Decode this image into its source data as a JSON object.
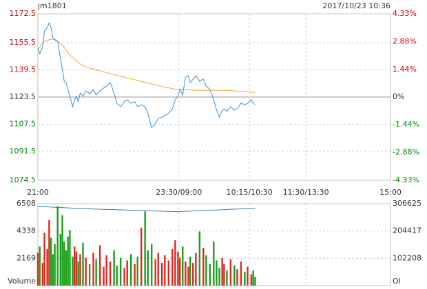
{
  "chart_data": [
    {
      "type": "line",
      "title": "jm1801",
      "subtitle": "2017/10/23 10:36",
      "xlim": [
        0,
        375
      ],
      "xticks": [
        {
          "value": 0,
          "label": "21:00"
        },
        {
          "value": 150,
          "label": "23:30/09:00"
        },
        {
          "value": 225,
          "label": "10:15/10:30"
        },
        {
          "value": 285,
          "label": "11:30/13:30"
        },
        {
          "value": 375,
          "label": "15:00"
        }
      ],
      "ylim": [
        1074.5,
        1172.5
      ],
      "yticks": [
        1172.5,
        1155.5,
        1139.5,
        1123.5,
        1107.5,
        1091.5,
        1074.5
      ],
      "y2lim": [
        -4.33,
        4.33
      ],
      "y2ticks": [
        {
          "value": 4.33,
          "label": "4.33%"
        },
        {
          "value": 2.88,
          "label": "2.88%"
        },
        {
          "value": 1.44,
          "label": "1.44%"
        },
        {
          "value": 0,
          "label": "0%"
        },
        {
          "value": -1.44,
          "label": "-1.44%"
        },
        {
          "value": -2.88,
          "label": "-2.88%"
        },
        {
          "value": -4.33,
          "label": "-4.33%"
        }
      ],
      "up_color": "#cc0000",
      "down_color": "#008800",
      "flat_color": "#333333",
      "grid": true,
      "x": [
        0,
        2,
        5,
        7,
        10,
        12,
        14,
        16,
        18,
        21,
        24,
        26,
        28,
        30,
        32,
        34,
        37,
        39,
        41,
        43,
        45,
        48,
        51,
        55,
        59,
        62,
        66,
        70,
        73,
        77,
        81,
        84,
        88,
        92,
        95,
        99,
        103,
        106,
        110,
        114,
        117,
        121,
        125,
        128,
        132,
        135,
        139,
        143,
        146,
        149,
        151,
        154,
        157,
        160,
        162,
        165,
        168,
        172,
        176,
        179,
        183,
        187,
        190,
        193,
        196,
        198,
        201,
        205,
        209,
        212,
        216,
        220,
        223,
        227,
        229,
        231
      ],
      "series": [
        {
          "color": "#3a8fd6",
          "values": [
            1152.3,
            1149.0,
            1153.1,
            1162.4,
            1164.4,
            1167.2,
            1164.4,
            1158.3,
            1157.1,
            1156.3,
            1146.2,
            1140.1,
            1132.8,
            1132.0,
            1127.9,
            1123.9,
            1117.8,
            1121.9,
            1123.9,
            1120.7,
            1125.9,
            1123.9,
            1127.1,
            1125.5,
            1127.9,
            1124.7,
            1127.1,
            1128.8,
            1130.0,
            1132.0,
            1125.9,
            1119.8,
            1117.8,
            1120.7,
            1121.9,
            1119.8,
            1120.7,
            1117.8,
            1119.0,
            1117.8,
            1113.8,
            1105.7,
            1107.7,
            1110.9,
            1111.7,
            1112.6,
            1113.8,
            1116.6,
            1121.9,
            1123.9,
            1127.9,
            1124.7,
            1135.2,
            1136.0,
            1132.0,
            1134.0,
            1136.0,
            1132.8,
            1134.0,
            1130.0,
            1127.9,
            1121.9,
            1115.8,
            1111.7,
            1115.8,
            1116.6,
            1115.0,
            1117.8,
            1115.8,
            1116.6,
            1119.8,
            1119.0,
            1119.8,
            1121.9,
            1119.8,
            1119.0
          ]
        },
        {
          "color": "#f0a830",
          "values": [
            1151.5,
            1153,
            1155,
            1156.3,
            1156.8,
            1157.2,
            1157.4,
            1157.5,
            1157.5,
            1156.5,
            1155,
            1154.3,
            1152.7,
            1151.1,
            1149.6,
            1148.2,
            1147,
            1145.8,
            1144.7,
            1143.9,
            1143,
            1142.1,
            1141.3,
            1140.6,
            1140,
            1139.3,
            1138.8,
            1138.3,
            1137.8,
            1137.3,
            1136.8,
            1136.2,
            1135.7,
            1135.2,
            1134.7,
            1134.2,
            1133.7,
            1133.2,
            1132.7,
            1132.2,
            1131.7,
            1131.2,
            1130.7,
            1130.2,
            1129.7,
            1129.2,
            1128.9,
            1128.5,
            1128.1,
            1127.9,
            1127.9,
            1127.8,
            1127.8,
            1127.7,
            1127.7,
            1127.5,
            1127.5,
            1127.5,
            1127.5,
            1127.5,
            1127.5,
            1127.5,
            1127.5,
            1127.5,
            1127.5,
            1127.5,
            1127.4,
            1127.3,
            1127.1,
            1126.9,
            1126.8,
            1126.6,
            1126.5,
            1126.4,
            1126.3,
            1126.3
          ]
        }
      ]
    },
    {
      "type": "bar",
      "ylabel": "Volume",
      "y2label": "OI",
      "xlim": [
        0,
        375
      ],
      "ylim": [
        0,
        6508
      ],
      "yticks": [
        2169,
        4338,
        6508
      ],
      "y2lim": [
        0,
        306625
      ],
      "y2ticks": [
        102208,
        204417,
        306625
      ],
      "x": [
        0,
        2,
        5,
        7,
        10,
        12,
        14,
        16,
        18,
        21,
        24,
        26,
        28,
        30,
        32,
        34,
        37,
        39,
        41,
        43,
        45,
        48,
        51,
        55,
        59,
        62,
        66,
        70,
        73,
        77,
        81,
        84,
        88,
        92,
        95,
        99,
        103,
        106,
        110,
        114,
        117,
        121,
        125,
        128,
        132,
        135,
        139,
        143,
        146,
        149,
        151,
        154,
        157,
        160,
        162,
        165,
        168,
        172,
        176,
        179,
        183,
        187,
        190,
        193,
        196,
        198,
        201,
        205,
        209,
        212,
        216,
        220,
        223,
        227,
        229,
        231
      ],
      "series": [
        {
          "values": [
            2600,
            3100,
            1800,
            4200,
            2900,
            5200,
            3800,
            2500,
            3300,
            6300,
            4100,
            5600,
            3500,
            2800,
            3900,
            4400,
            2300,
            3100,
            2700,
            1900,
            2500,
            3400,
            2200,
            1700,
            2600,
            2100,
            3200,
            1500,
            2400,
            1900,
            2800,
            1600,
            2200,
            1400,
            2000,
            2500,
            1700,
            2300,
            4600,
            5900,
            2800,
            3300,
            2100,
            2600,
            1800,
            2400,
            2000,
            2900,
            3600,
            2700,
            2200,
            3100,
            1900,
            1500,
            2300,
            1800,
            2600,
            4300,
            3000,
            2400,
            1700,
            3500,
            2000,
            1400,
            2200,
            1700,
            1200,
            2100,
            1600,
            1300,
            1900,
            1100,
            1500,
            900,
            1200,
            700
          ],
          "colors": [
            "#e0261e",
            "#17a017",
            "#e0261e",
            "#e0261e",
            "#e0261e",
            "#e0261e",
            "#17a017",
            "#17a017",
            "#17a017",
            "#17a017",
            "#17a017",
            "#17a017",
            "#17a017",
            "#17a017",
            "#17a017",
            "#17a017",
            "#17a017",
            "#e0261e",
            "#e0261e",
            "#17a017",
            "#e0261e",
            "#17a017",
            "#e0261e",
            "#17a017",
            "#e0261e",
            "#17a017",
            "#e0261e",
            "#e0261e",
            "#e0261e",
            "#e0261e",
            "#17a017",
            "#17a017",
            "#17a017",
            "#e0261e",
            "#e0261e",
            "#17a017",
            "#e0261e",
            "#17a017",
            "#e0261e",
            "#17a017",
            "#17a017",
            "#17a017",
            "#e0261e",
            "#e0261e",
            "#e0261e",
            "#e0261e",
            "#e0261e",
            "#e0261e",
            "#e0261e",
            "#e0261e",
            "#e0261e",
            "#17a017",
            "#e0261e",
            "#e0261e",
            "#17a017",
            "#e0261e",
            "#e0261e",
            "#17a017",
            "#e0261e",
            "#17a017",
            "#17a017",
            "#17a017",
            "#17a017",
            "#17a017",
            "#e0261e",
            "#e0261e",
            "#17a017",
            "#e0261e",
            "#17a017",
            "#e0261e",
            "#e0261e",
            "#17a017",
            "#e0261e",
            "#e0261e",
            "#17a017",
            "#17a017"
          ]
        },
        {
          "axis": "y2",
          "color": "#2f7fc4",
          "values": [
            296500,
            296100,
            295700,
            295300,
            294900,
            294500,
            294100,
            293600,
            293200,
            292800,
            292400,
            292000,
            291600,
            291200,
            290800,
            290400,
            290000,
            289600,
            289200,
            288800,
            288300,
            287900,
            287500,
            287100,
            286700,
            286300,
            285900,
            285500,
            285100,
            284700,
            284300,
            283800,
            283400,
            283000,
            282600,
            282200,
            281800,
            281400,
            281000,
            280600,
            280200,
            279800,
            279300,
            278900,
            278500,
            278100,
            277700,
            277300,
            276900,
            276500,
            277000,
            277500,
            278000,
            278500,
            279000,
            279500,
            280000,
            280500,
            281000,
            281500,
            282000,
            282500,
            283000,
            283500,
            284000,
            284500,
            285000,
            285500,
            286000,
            286500,
            287000,
            287500,
            288000,
            288500,
            289000,
            289500
          ]
        }
      ]
    }
  ]
}
